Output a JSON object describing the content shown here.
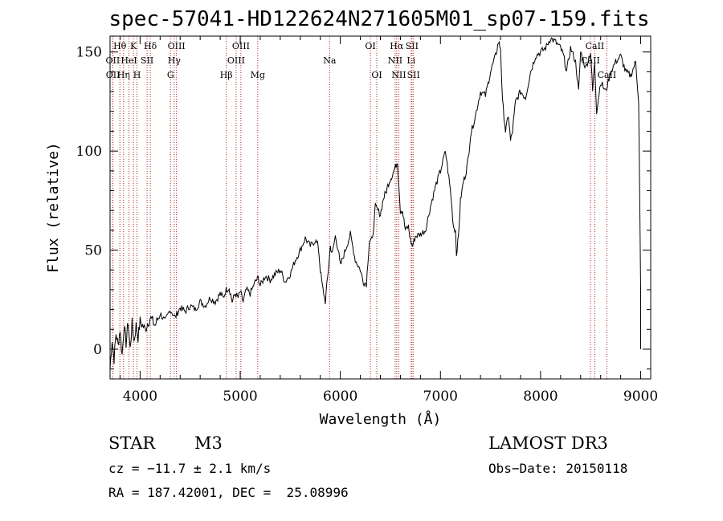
{
  "chart_data": {
    "type": "line",
    "title": "spec-57041-HD122624N271605M01_sp07-159.fits",
    "xlabel": "Wavelength (Å)",
    "ylabel": "Flux (relative)",
    "xlim": [
      3700,
      9100
    ],
    "ylim": [
      -15,
      158
    ],
    "xticks": [
      4000,
      5000,
      6000,
      7000,
      8000,
      9000
    ],
    "yticks": [
      0,
      50,
      100,
      150
    ],
    "series": [
      {
        "name": "spectrum",
        "x": [
          3700,
          3720,
          3740,
          3760,
          3780,
          3800,
          3820,
          3840,
          3860,
          3880,
          3900,
          3920,
          3940,
          3960,
          3980,
          4000,
          4050,
          4100,
          4150,
          4200,
          4250,
          4300,
          4350,
          4400,
          4450,
          4500,
          4550,
          4600,
          4650,
          4700,
          4750,
          4800,
          4830,
          4860,
          4890,
          4920,
          4950,
          4980,
          5000,
          5030,
          5060,
          5100,
          5150,
          5180,
          5200,
          5250,
          5300,
          5350,
          5400,
          5450,
          5500,
          5550,
          5600,
          5650,
          5700,
          5750,
          5780,
          5800,
          5820,
          5850,
          5880,
          5900,
          5920,
          5950,
          5980,
          6000,
          6050,
          6100,
          6150,
          6200,
          6230,
          6260,
          6290,
          6320,
          6350,
          6400,
          6430,
          6460,
          6490,
          6520,
          6550,
          6570,
          6600,
          6620,
          6650,
          6680,
          6700,
          6720,
          6750,
          6800,
          6850,
          6900,
          6950,
          7000,
          7050,
          7100,
          7130,
          7150,
          7160,
          7180,
          7200,
          7230,
          7250,
          7280,
          7300,
          7350,
          7400,
          7450,
          7500,
          7550,
          7580,
          7600,
          7620,
          7650,
          7680,
          7700,
          7720,
          7750,
          7800,
          7850,
          7900,
          7950,
          8000,
          8050,
          8100,
          8150,
          8200,
          8230,
          8260,
          8300,
          8350,
          8380,
          8400,
          8450,
          8500,
          8520,
          8540,
          8560,
          8600,
          8650,
          8700,
          8750,
          8800,
          8850,
          8900,
          8950,
          8980,
          9000,
          9000
        ],
        "values": [
          -10,
          5,
          -5,
          8,
          2,
          10,
          -3,
          12,
          3,
          14,
          0,
          13,
          4,
          12,
          6,
          14,
          10,
          16,
          12,
          18,
          14,
          20,
          16,
          21,
          19,
          22,
          20,
          24,
          22,
          26,
          24,
          28,
          26,
          30,
          31,
          24,
          28,
          26,
          29,
          24,
          30,
          28,
          34,
          36,
          32,
          37,
          35,
          38,
          40,
          34,
          38,
          45,
          50,
          56,
          52,
          55,
          52,
          40,
          32,
          24,
          40,
          52,
          48,
          57,
          50,
          42,
          50,
          58,
          45,
          40,
          34,
          33,
          55,
          55,
          72,
          68,
          76,
          80,
          85,
          88,
          92,
          95,
          70,
          70,
          60,
          62,
          55,
          52,
          57,
          58,
          60,
          72,
          82,
          90,
          100,
          80,
          62,
          60,
          48,
          57,
          75,
          85,
          88,
          97,
          108,
          118,
          130,
          128,
          140,
          148,
          155,
          152,
          125,
          110,
          118,
          105,
          110,
          125,
          130,
          127,
          140,
          148,
          150,
          152,
          157,
          155,
          152,
          148,
          140,
          152,
          145,
          130,
          150,
          142,
          150,
          130,
          145,
          120,
          135,
          130,
          140,
          145,
          148,
          140,
          138,
          145,
          125,
          30,
          0
        ]
      }
    ],
    "spectral_lines": [
      {
        "label": "Hθ",
        "wl": 3798,
        "row": 0
      },
      {
        "label": "OII",
        "wl": 3727,
        "row": 1
      },
      {
        "label": "OII",
        "wl": 3729,
        "row": 2
      },
      {
        "label": "Hη",
        "wl": 3835,
        "row": 2
      },
      {
        "label": "HeI",
        "wl": 3889,
        "row": 1
      },
      {
        "label": "K",
        "wl": 3934,
        "row": 0
      },
      {
        "label": "SII",
        "wl": 4070,
        "row": 1
      },
      {
        "label": "H",
        "wl": 3969,
        "row": 2
      },
      {
        "label": "Hδ",
        "wl": 4102,
        "row": 0
      },
      {
        "label": "OIII",
        "wl": 4363,
        "row": 0
      },
      {
        "label": "Hγ",
        "wl": 4341,
        "row": 1
      },
      {
        "label": "G",
        "wl": 4304,
        "row": 2
      },
      {
        "label": "OIII",
        "wl": 5007,
        "row": 0
      },
      {
        "label": "OIII",
        "wl": 4959,
        "row": 1
      },
      {
        "label": "Hβ",
        "wl": 4861,
        "row": 2
      },
      {
        "label": "Mg",
        "wl": 5175,
        "row": 2
      },
      {
        "label": "Na",
        "wl": 5893,
        "row": 1
      },
      {
        "label": "OI",
        "wl": 6300,
        "row": 0
      },
      {
        "label": "OI",
        "wl": 6364,
        "row": 2
      },
      {
        "label": "Hα",
        "wl": 6563,
        "row": 0
      },
      {
        "label": "SII",
        "wl": 6716,
        "row": 0
      },
      {
        "label": "NII",
        "wl": 6548,
        "row": 1
      },
      {
        "label": "Li",
        "wl": 6708,
        "row": 1
      },
      {
        "label": "NII",
        "wl": 6584,
        "row": 2
      },
      {
        "label": "SII",
        "wl": 6731,
        "row": 2
      },
      {
        "label": "CaII",
        "wl": 8542,
        "row": 0
      },
      {
        "label": "CaII",
        "wl": 8498,
        "row": 1
      },
      {
        "label": "CaII",
        "wl": 8662,
        "row": 2
      }
    ]
  },
  "info": {
    "class": "STAR",
    "subclass": "M3",
    "survey": "LAMOST DR3",
    "cz": "cz = −11.7 ± 2.1 km/s",
    "obs_date": "Obs−Date: 20150118",
    "coords": "RA = 187.42001, DEC =  25.08996"
  }
}
